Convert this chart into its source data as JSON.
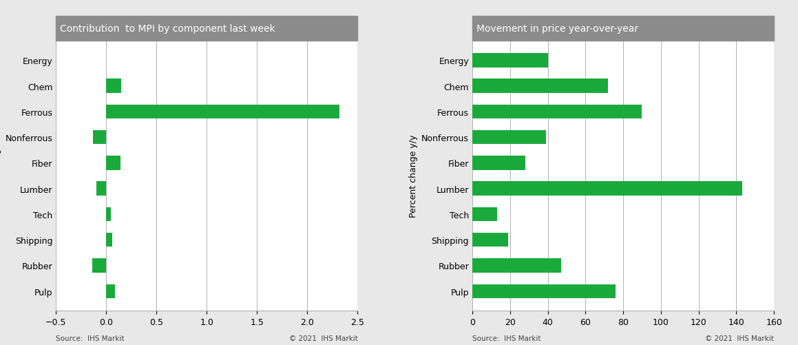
{
  "left_title": "Contribution  to MPI by component last week",
  "right_title": "Movement in price year-over-year",
  "categories": [
    "Energy",
    "Chem",
    "Ferrous",
    "Nonferrous",
    "Fiber",
    "Lumber",
    "Tech",
    "Shipping",
    "Rubber",
    "Pulp"
  ],
  "left_values": [
    0.0,
    0.15,
    2.32,
    -0.13,
    0.14,
    -0.1,
    0.05,
    0.06,
    -0.14,
    0.09
  ],
  "right_values": [
    40,
    72,
    90,
    39,
    28,
    143,
    13,
    19,
    47,
    76
  ],
  "bar_color": "#1aaa3c",
  "left_xlim": [
    -0.5,
    2.5
  ],
  "left_xticks": [
    -0.5,
    0.0,
    0.5,
    1.0,
    1.5,
    2.0,
    2.5
  ],
  "right_xlim": [
    0,
    160
  ],
  "right_xticks": [
    0,
    20,
    40,
    60,
    80,
    100,
    120,
    140,
    160
  ],
  "left_ylabel": "Percent change",
  "right_ylabel": "Percent change y/y",
  "source_text": "Source:  IHS Markit",
  "copyright_text": "© 2021  IHS Markit",
  "header_bg_color": "#8c8c8c",
  "header_text_color": "#ffffff",
  "plot_bg_color": "#ffffff",
  "fig_bg_color": "#e8e8e8",
  "grid_color": "#b0b0b0",
  "bottom_text_color": "#444444"
}
